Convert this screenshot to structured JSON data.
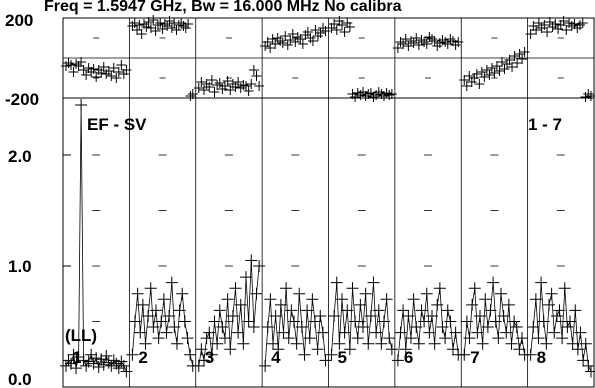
{
  "chart_data": [
    {
      "type": "scatter",
      "panel": "phase",
      "title": "Freq = 1.5947 GHz, Bw = 16.000 MHz  No calibra",
      "y_ticks": [
        "200",
        "-200"
      ],
      "ylim": [
        -200,
        200
      ],
      "grid": true,
      "x_ticks": [],
      "series": [
        {
          "baseline": 1,
          "values": [
            -40,
            -25,
            -35,
            -70,
            -30,
            -40,
            -20,
            -60,
            -85,
            -50,
            -70,
            -55,
            -95,
            -60,
            -75,
            -45,
            -80,
            -65,
            -90,
            -50,
            -100,
            -70,
            -35,
            -80,
            -60
          ]
        },
        {
          "baseline": 2,
          "values": [
            160,
            175,
            140,
            165,
            120,
            170,
            155,
            180,
            150,
            190,
            135,
            165,
            175,
            145,
            170,
            160,
            185,
            150,
            175,
            140,
            165,
            175,
            160,
            150,
            170,
            -190,
            -180
          ]
        },
        {
          "baseline": 3,
          "values": [
            -150,
            -120,
            -160,
            -130,
            -145,
            -110,
            -170,
            -135,
            -125,
            -155,
            -140,
            -115,
            -160,
            -130,
            -145,
            -120,
            -150,
            -135,
            -140,
            -165,
            -130,
            -60,
            -90,
            -140
          ]
        },
        {
          "baseline": 4,
          "values": [
            60,
            80,
            50,
            95,
            70,
            100,
            85,
            75,
            110,
            65,
            90,
            120,
            80,
            105,
            95,
            70,
            115,
            130,
            100,
            85,
            140,
            110,
            125,
            150,
            135
          ]
        },
        {
          "baseline": 5,
          "values": [
            150,
            170,
            140,
            185,
            165,
            130,
            175,
            155,
            -180,
            -195,
            -175,
            -185,
            -170,
            -190,
            -180,
            -175,
            -195,
            -185,
            -170,
            -180,
            -190,
            -175,
            -185,
            -180
          ]
        },
        {
          "baseline": 6,
          "values": [
            50,
            80,
            70,
            95,
            60,
            85,
            75,
            100,
            65,
            90,
            80,
            70,
            105,
            95,
            85,
            60,
            75,
            90,
            80,
            70,
            95,
            85,
            65,
            80
          ]
        },
        {
          "baseline": 7,
          "values": [
            -110,
            -140,
            -90,
            -120,
            -100,
            -80,
            -130,
            -70,
            -95,
            -60,
            -85,
            -50,
            -75,
            -40,
            -65,
            -20,
            -55,
            -30,
            -10,
            -45,
            10,
            -25,
            20,
            -5,
            30
          ]
        },
        {
          "baseline": 8,
          "values": [
            120,
            160,
            140,
            175,
            150,
            165,
            130,
            180,
            155,
            170,
            145,
            165,
            185,
            140,
            175,
            160,
            170,
            150,
            165,
            175,
            -195,
            -180,
            -190
          ]
        }
      ]
    },
    {
      "type": "line",
      "panel": "amplitude",
      "y_ticks": [
        "2.0",
        "1.0",
        "0.0"
      ],
      "ylim": [
        0,
        2.1
      ],
      "grid": true,
      "legend": "top-left",
      "labels": {
        "correlation": "EF - SV",
        "polarization": "(LL)",
        "range": "1 - 7"
      },
      "series": [
        {
          "baseline": 1,
          "label": "1",
          "values": [
            0.1,
            0.15,
            0.12,
            0.2,
            0.08,
            0.18,
            2.45,
            0.15,
            0.1,
            0.14,
            0.2,
            0.12,
            0.17,
            0.09,
            0.16,
            0.11,
            0.19,
            0.13,
            0.1,
            0.15,
            0.12,
            0.08,
            0.14,
            0.1,
            0.05
          ]
        },
        {
          "baseline": 2,
          "label": "2",
          "values": [
            0.2,
            0.5,
            0.75,
            0.4,
            0.65,
            0.3,
            0.55,
            0.8,
            0.45,
            0.6,
            0.35,
            0.5,
            0.7,
            0.4,
            0.55,
            0.85,
            0.45,
            0.3,
            0.6,
            0.75,
            0.5,
            0.35,
            0.2,
            0.1
          ]
        },
        {
          "baseline": 3,
          "label": "3",
          "values": [
            0.1,
            0.25,
            0.15,
            0.35,
            0.4,
            0.2,
            0.5,
            0.3,
            0.6,
            0.45,
            0.35,
            0.7,
            0.25,
            0.55,
            0.8,
            0.4,
            0.65,
            0.3,
            0.9,
            0.5,
            1.05,
            0.45,
            0.75,
            1.0
          ]
        },
        {
          "baseline": 4,
          "label": "4",
          "values": [
            0.1,
            0.45,
            0.7,
            0.3,
            0.55,
            0.25,
            0.65,
            0.4,
            0.8,
            0.35,
            0.6,
            0.5,
            0.3,
            0.75,
            0.45,
            0.2,
            0.6,
            0.35,
            0.7,
            0.5,
            0.25,
            0.55,
            0.4,
            0.15
          ]
        },
        {
          "baseline": 5,
          "label": "5",
          "values": [
            0.2,
            0.55,
            0.85,
            0.3,
            0.7,
            0.4,
            0.6,
            0.25,
            0.8,
            0.5,
            0.35,
            0.65,
            0.45,
            0.75,
            0.3,
            0.55,
            0.85,
            0.4,
            0.6,
            0.3,
            0.5,
            0.7,
            0.35,
            0.25
          ]
        },
        {
          "baseline": 6,
          "label": "6",
          "values": [
            0.15,
            0.4,
            0.6,
            0.25,
            0.55,
            0.35,
            0.7,
            0.45,
            0.3,
            0.6,
            0.5,
            0.75,
            0.4,
            0.55,
            0.3,
            0.65,
            0.8,
            0.45,
            0.35,
            0.6,
            0.5,
            0.25,
            0.4,
            0.2
          ]
        },
        {
          "baseline": 7,
          "label": "7",
          "values": [
            0.2,
            0.5,
            0.35,
            0.65,
            0.8,
            0.4,
            0.55,
            0.3,
            0.7,
            0.45,
            0.6,
            0.85,
            0.5,
            0.35,
            0.75,
            0.55,
            0.4,
            0.65,
            0.3,
            0.5,
            0.45,
            0.25,
            0.35,
            0.2
          ]
        },
        {
          "baseline": 8,
          "label": "8",
          "values": [
            0.2,
            0.45,
            0.7,
            0.35,
            0.85,
            0.5,
            0.3,
            0.65,
            0.75,
            0.4,
            0.55,
            0.6,
            0.35,
            0.8,
            0.45,
            0.5,
            0.3,
            0.6,
            0.25,
            0.4,
            0.15,
            0.3,
            0.1,
            0.05
          ]
        }
      ]
    }
  ]
}
